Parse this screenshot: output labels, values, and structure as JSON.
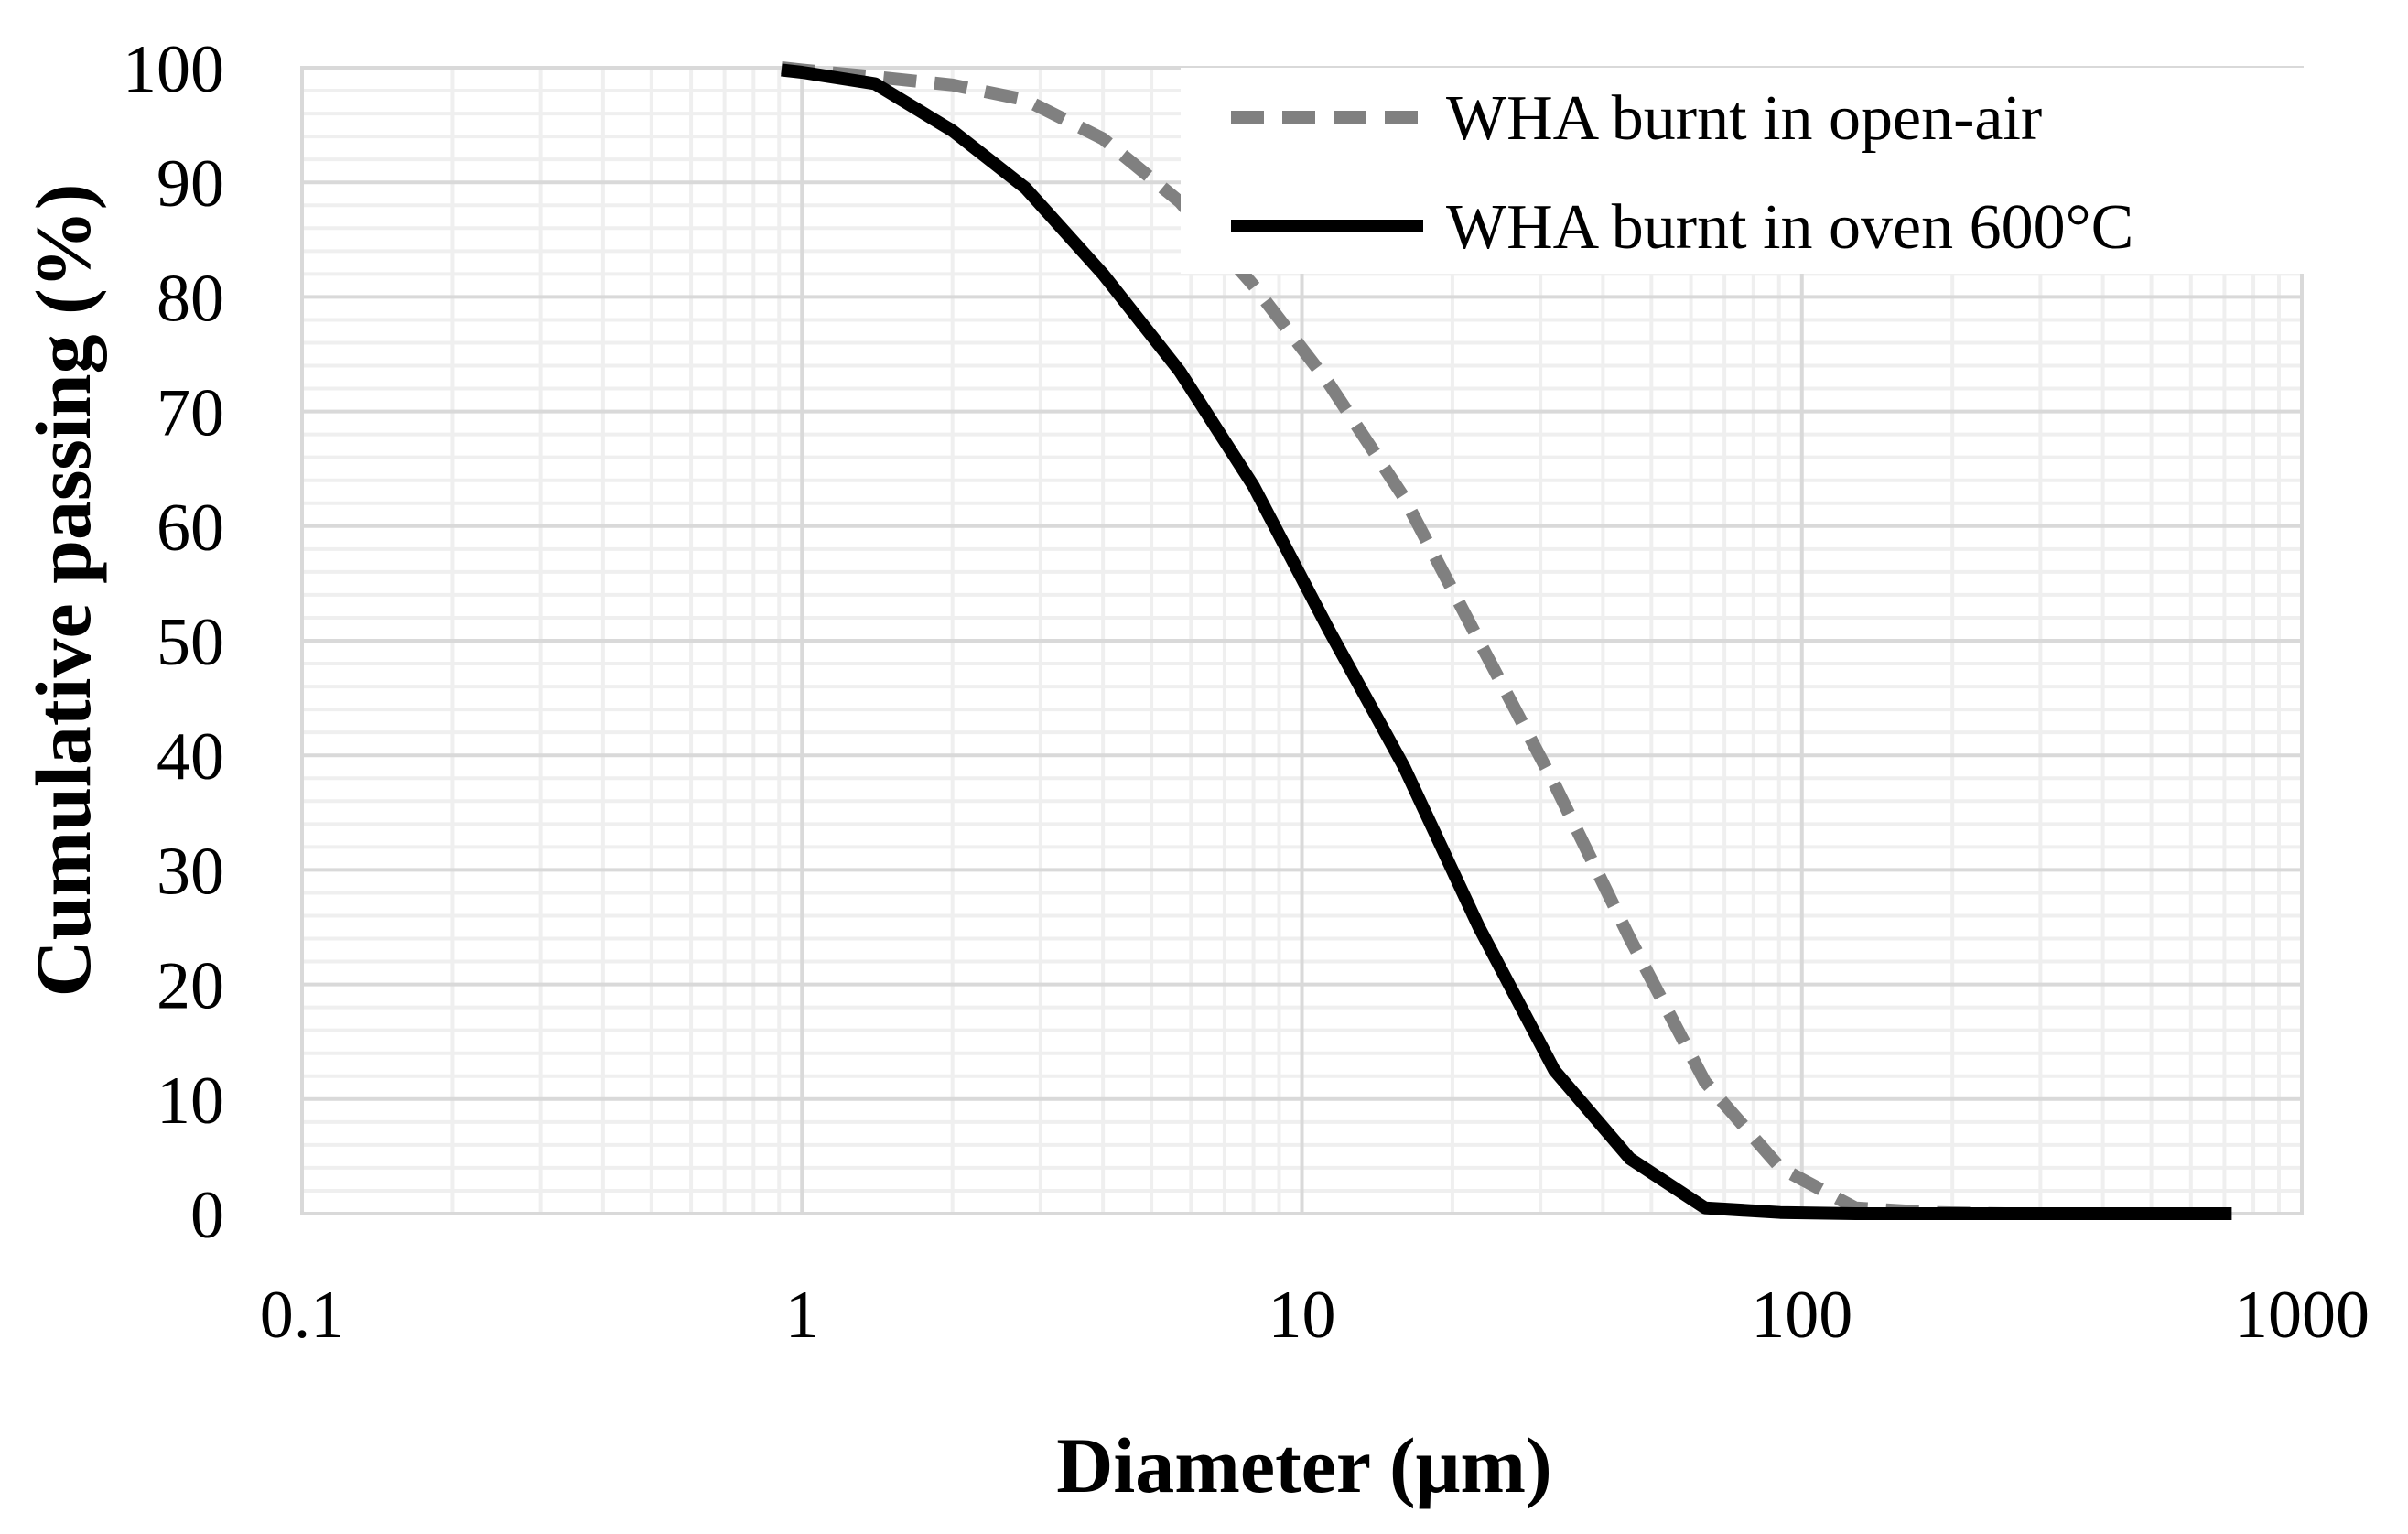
{
  "chart_data": {
    "type": "line",
    "title": "",
    "xlabel": "Diameter (μm)",
    "ylabel": "Cumulative passing (%)",
    "xscale": "log",
    "xlim": [
      0.1,
      1000
    ],
    "ylim": [
      0,
      100
    ],
    "x_ticks": [
      0.1,
      1,
      10,
      100,
      1000
    ],
    "x_tick_labels": [
      "0.1",
      "1",
      "10",
      "100",
      "1000"
    ],
    "y_ticks": [
      0,
      10,
      20,
      30,
      40,
      50,
      60,
      70,
      80,
      90,
      100
    ],
    "y_tick_labels": [
      "0",
      "10",
      "20",
      "30",
      "40",
      "50",
      "60",
      "70",
      "80",
      "90",
      "100"
    ],
    "grid": true,
    "minor_grid": true,
    "legend_position": "top-right",
    "series": [
      {
        "name": "WHA burnt in open-air",
        "style": "dashed",
        "color": "#808080",
        "x": [
          0.91,
          1.0,
          1.4,
          2.0,
          2.8,
          4.0,
          5.7,
          8.0,
          11.3,
          16.0,
          22.6,
          32.0,
          45.3,
          64.0,
          90.5,
          128,
          181,
          256,
          362,
          512,
          724
        ],
        "y": [
          100,
          99.8,
          99.2,
          98.5,
          97.2,
          93.8,
          88.3,
          81.0,
          72.5,
          62.5,
          50.0,
          37.5,
          24.0,
          11.5,
          4.0,
          0.5,
          0.1,
          0,
          0,
          0,
          0
        ]
      },
      {
        "name": "WHA burnt in oven 600°C",
        "style": "solid",
        "color": "#000000",
        "x": [
          0.91,
          1.0,
          1.4,
          2.0,
          2.8,
          4.0,
          5.7,
          8.0,
          11.3,
          16.0,
          22.6,
          32.0,
          45.3,
          64.0,
          90.5,
          128,
          181,
          256,
          362,
          512,
          724
        ],
        "y": [
          99.8,
          99.6,
          98.6,
          94.5,
          89.5,
          82.0,
          73.5,
          63.5,
          51.0,
          39.0,
          25.0,
          12.5,
          4.8,
          0.5,
          0.1,
          0,
          0,
          0,
          0,
          0,
          0
        ]
      }
    ]
  }
}
